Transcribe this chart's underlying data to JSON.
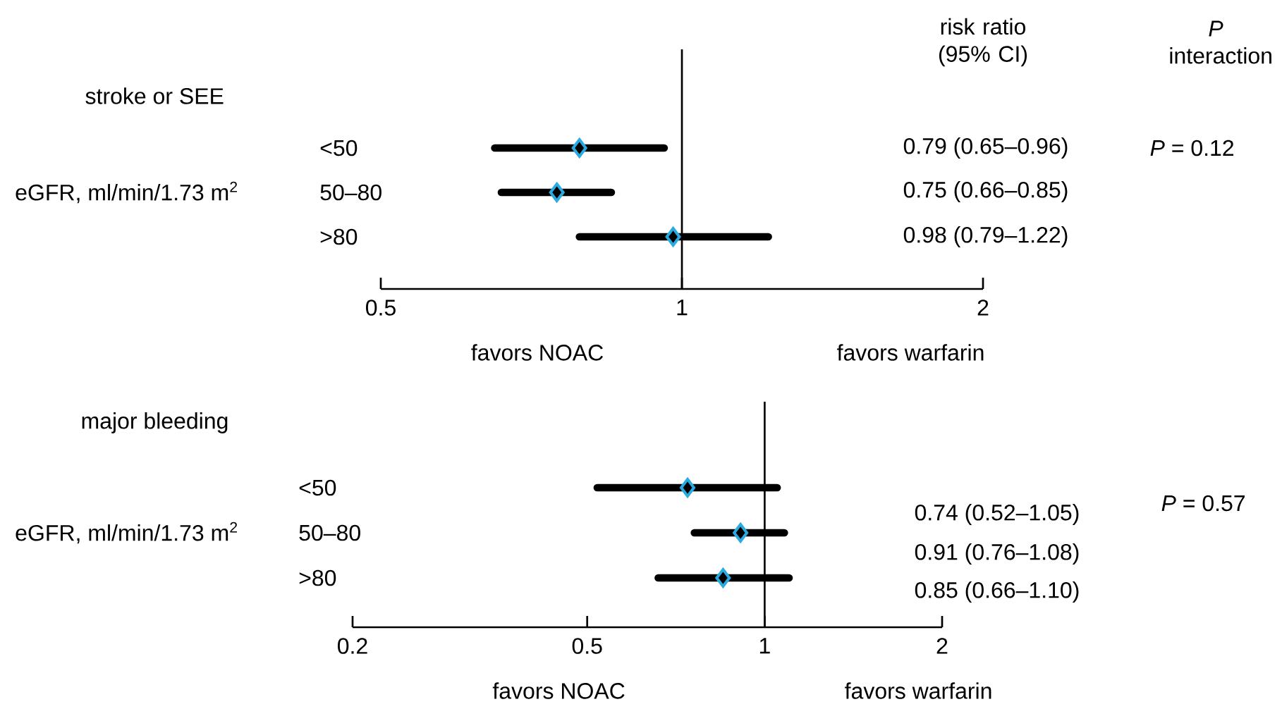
{
  "chart_data": [
    {
      "type": "scatter",
      "orientation": "horizontal",
      "title": "stroke or SEE",
      "ylabel": "eGFR, ml/min/1.73 m$^{2}$",
      "categories": [
        "<50",
        "50–80",
        ">80"
      ],
      "values": [
        0.79,
        0.75,
        0.98
      ],
      "errors": [
        [
          0.65,
          0.96
        ],
        [
          0.66,
          0.85
        ],
        [
          0.79,
          1.22
        ]
      ],
      "color": "#000000",
      "marker": "diamond",
      "log": "x",
      "xlim": [
        0.5,
        2
      ],
      "xticks": [
        0.5,
        1,
        2
      ],
      "ref_lines": [
        {
          "axis": "x",
          "value": 1
        }
      ],
      "annotations": [
        "0.79 (0.65–0.96)",
        "0.75 (0.66–0.85)",
        "0.98 (0.79–1.22)",
        "favors NOAC",
        "favors warfarin",
        "*P* = 0.12",
        "risk ratio (95% CI)",
        "*P* interaction"
      ]
    },
    {
      "type": "scatter",
      "orientation": "horizontal",
      "title": "major bleeding",
      "ylabel": "eGFR, ml/min/1.73 m$^{2}$",
      "categories": [
        "<50",
        "50–80",
        ">80"
      ],
      "values": [
        0.74,
        0.91,
        0.85
      ],
      "errors": [
        [
          0.52,
          1.05
        ],
        [
          0.76,
          1.08
        ],
        [
          0.66,
          1.1
        ]
      ],
      "color": "#000000",
      "marker": "diamond",
      "log": "x",
      "xlim": [
        0.2,
        2
      ],
      "xticks": [
        0.2,
        0.5,
        1,
        2
      ],
      "ref_lines": [
        {
          "axis": "x",
          "value": 1
        }
      ],
      "annotations": [
        "0.74 (0.52–1.05)",
        "0.91 (0.76–1.08)",
        "0.85 (0.66–1.10)",
        "favors NOAC",
        "favors warfarin",
        "*P* = 0.57"
      ]
    }
  ]
}
